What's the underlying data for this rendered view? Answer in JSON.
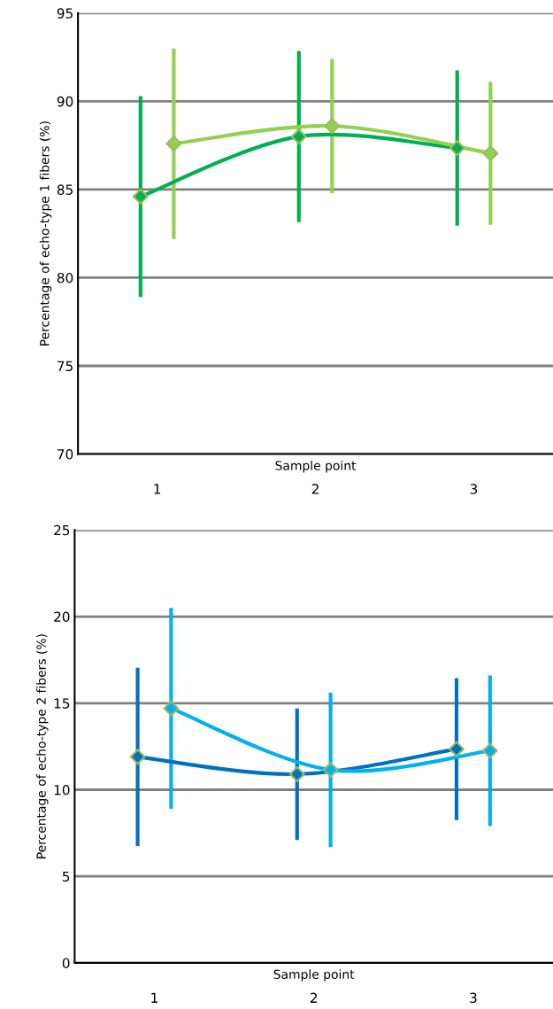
{
  "chart_data": [
    {
      "type": "line",
      "ylabel": "Percentage of echo-type 1 fibers (%)",
      "xlabel": "Sample point",
      "categories": [
        "1",
        "2",
        "3"
      ],
      "ylim": [
        70,
        95
      ],
      "yticks": [
        70,
        75,
        80,
        85,
        90,
        95
      ],
      "grid": "y",
      "marker": "diamond",
      "legend": false,
      "series": [
        {
          "color": "#00b050",
          "values": [
            84.6,
            88.0,
            87.35
          ],
          "errors": [
            5.7,
            4.85,
            4.4
          ]
        },
        {
          "color": "#92d050",
          "values": [
            87.6,
            88.6,
            87.05
          ],
          "errors": [
            5.4,
            3.8,
            4.05
          ]
        }
      ]
    },
    {
      "type": "line",
      "ylabel": "Percentage of echo-type 2 fibers (%)",
      "xlabel": "Sample point",
      "categories": [
        "1",
        "2",
        "3"
      ],
      "ylim": [
        0,
        25
      ],
      "yticks": [
        0,
        5,
        10,
        15,
        20,
        25
      ],
      "grid": "y",
      "marker": "diamond",
      "legend": false,
      "series": [
        {
          "color": "#0070c0",
          "values": [
            11.9,
            10.9,
            12.35
          ],
          "errors": [
            5.15,
            3.8,
            4.1
          ]
        },
        {
          "color": "#00b0f0",
          "values": [
            14.7,
            11.15,
            12.25
          ],
          "errors": [
            5.8,
            4.45,
            4.35
          ]
        }
      ]
    }
  ]
}
